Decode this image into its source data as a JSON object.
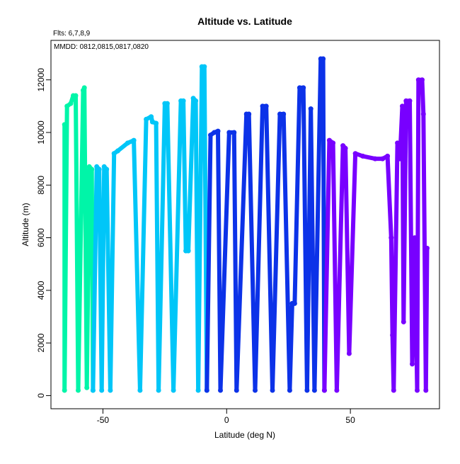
{
  "chart_data": {
    "type": "line",
    "title": "Altitude vs. Latitude",
    "xlabel": "Latitude (deg N)",
    "ylabel": "Altitude (m)",
    "subtitle": "Flts: 6,7,8,9",
    "annotation": "MMDD: 0812,0815,0817,0820",
    "xlim": [
      -71,
      86
    ],
    "ylim": [
      -500,
      13500
    ],
    "x_ticks": [
      -50,
      0,
      50
    ],
    "y_ticks": [
      0,
      2000,
      4000,
      6000,
      8000,
      10000,
      12000
    ],
    "grid": false,
    "series": [
      {
        "color": "#00F5A8",
        "points": [
          [
            -65.5,
            10300
          ],
          [
            -65.5,
            200
          ],
          [
            -64.5,
            11000
          ],
          [
            -63,
            11100
          ],
          [
            -62,
            11400
          ],
          [
            -61,
            11400
          ],
          [
            -60,
            200
          ],
          [
            -58,
            11600
          ],
          [
            -57.5,
            11700
          ],
          [
            -56.5,
            300
          ],
          [
            -55.5,
            8700
          ],
          [
            -54.5,
            8600
          ],
          [
            -54,
            200
          ]
        ]
      },
      {
        "color": "#00C6F8",
        "points": [
          [
            -54,
            200
          ],
          [
            -52.5,
            8700
          ],
          [
            -51.5,
            8600
          ],
          [
            -50.5,
            200
          ],
          [
            -49.5,
            8700
          ],
          [
            -48.5,
            8600
          ],
          [
            -47,
            200
          ],
          [
            -45.5,
            9200
          ],
          [
            -44,
            9300
          ],
          [
            -40,
            9600
          ],
          [
            -37.5,
            9700
          ],
          [
            -35,
            200
          ],
          [
            -32.5,
            10500
          ],
          [
            -30.5,
            10600
          ],
          [
            -30,
            10400
          ],
          [
            -28.5,
            10350
          ],
          [
            -27.5,
            200
          ],
          [
            -25,
            11100
          ],
          [
            -24,
            11100
          ],
          [
            -21.5,
            200
          ],
          [
            -18.5,
            11200
          ],
          [
            -17.5,
            11200
          ],
          [
            -16.5,
            5500
          ],
          [
            -15.5,
            5500
          ],
          [
            -13.5,
            11300
          ],
          [
            -12.5,
            11200
          ],
          [
            -11.5,
            200
          ],
          [
            -10,
            12500
          ],
          [
            -9,
            12500
          ],
          [
            -8,
            200
          ]
        ]
      },
      {
        "color": "#0C32E8",
        "points": [
          [
            -8,
            200
          ],
          [
            -6.5,
            9900
          ],
          [
            -5,
            10000
          ],
          [
            -3.5,
            10050
          ],
          [
            -2.5,
            200
          ],
          [
            1,
            10000
          ],
          [
            3,
            10000
          ],
          [
            4,
            200
          ],
          [
            8,
            10700
          ],
          [
            9,
            10700
          ],
          [
            11.5,
            200
          ],
          [
            14.5,
            11000
          ],
          [
            16,
            11000
          ],
          [
            18.5,
            200
          ],
          [
            21.5,
            10700
          ],
          [
            23,
            10700
          ],
          [
            25.5,
            200
          ],
          [
            26.5,
            3500
          ],
          [
            27.5,
            3500
          ],
          [
            29.5,
            11700
          ],
          [
            31,
            11700
          ],
          [
            32.5,
            200
          ],
          [
            34,
            10900
          ],
          [
            35.5,
            200
          ],
          [
            38,
            12800
          ],
          [
            39,
            12800
          ],
          [
            39.5,
            200
          ]
        ]
      },
      {
        "color": "#7800FF",
        "points": [
          [
            39.5,
            200
          ],
          [
            41.5,
            9700
          ],
          [
            43,
            9600
          ],
          [
            44.5,
            200
          ],
          [
            47,
            9500
          ],
          [
            48,
            9400
          ],
          [
            49.5,
            1600
          ],
          [
            52,
            9200
          ],
          [
            55,
            9100
          ],
          [
            60,
            9000
          ],
          [
            63,
            9000
          ],
          [
            65,
            9100
          ],
          [
            66.5,
            6000
          ],
          [
            67,
            2300
          ],
          [
            67.5,
            200
          ],
          [
            69,
            9600
          ],
          [
            70,
            9000
          ],
          [
            71,
            11000
          ],
          [
            71.5,
            2800
          ],
          [
            72.5,
            11200
          ],
          [
            74,
            11200
          ],
          [
            75,
            1200
          ],
          [
            76,
            6000
          ],
          [
            77,
            200
          ],
          [
            77.5,
            12000
          ],
          [
            79,
            12000
          ],
          [
            79.5,
            10700
          ],
          [
            80.5,
            200
          ],
          [
            81,
            5600
          ]
        ]
      }
    ]
  }
}
